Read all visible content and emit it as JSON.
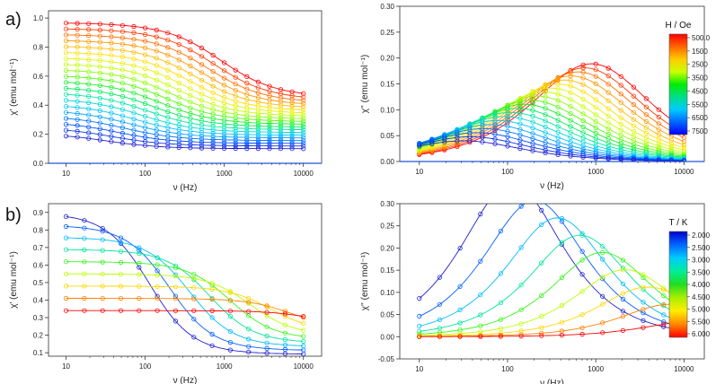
{
  "panel_labels": {
    "a": "a)",
    "b": "b)"
  },
  "chart_data": [
    {
      "id": "a_real",
      "type": "scatter",
      "xscale": "log",
      "xlim": [
        6,
        17000
      ],
      "ylim": [
        0,
        1.05
      ],
      "xticks": [
        10,
        100,
        1000,
        10000
      ],
      "xtick_labels": [
        "10",
        "100",
        "1000",
        "10000"
      ],
      "yticks": [
        0,
        0.2,
        0.4,
        0.6,
        0.8,
        1.0
      ],
      "ytick_labels": [
        "0.0",
        "0.2",
        "0.4",
        "0.6",
        "0.8",
        "1.0"
      ],
      "xlabel": "ν (Hz)",
      "ylabel": "χ' (emu mol⁻¹)",
      "legend_ref": "H / Oe",
      "generator": "real",
      "series_count": 20,
      "points_per_series": 22,
      "chi0_range": [
        0.97,
        0.21
      ],
      "chis_range": [
        0.45,
        0.1
      ],
      "tau_log10_range": [
        -3.75,
        -2.3
      ],
      "alpha": 0.2,
      "zero_line": true
    },
    {
      "id": "a_imag",
      "type": "scatter",
      "xscale": "log",
      "xlim": [
        6,
        17000
      ],
      "ylim": [
        0,
        0.3
      ],
      "xticks": [
        10,
        100,
        1000,
        10000
      ],
      "xtick_labels": [
        "10",
        "100",
        "1000",
        "10000"
      ],
      "yticks": [
        0,
        0.05,
        0.1,
        0.15,
        0.2,
        0.25,
        0.3
      ],
      "ytick_labels": [
        "0.00",
        "0.05",
        "0.10",
        "0.15",
        "0.20",
        "0.25",
        "0.30"
      ],
      "xlabel": "ν (Hz)",
      "ylabel": "χ'' (emu mol⁻¹)",
      "legend_ref": "H / Oe",
      "generator": "imag",
      "series_count": 20,
      "points_per_series": 22,
      "chi0_range": [
        0.97,
        0.21
      ],
      "chis_range": [
        0.45,
        0.1
      ],
      "tau_log10_range": [
        -3.75,
        -2.3
      ],
      "alpha": 0.2,
      "zero_line": true
    },
    {
      "id": "b_real",
      "type": "scatter",
      "xscale": "log",
      "xlim": [
        6,
        17000
      ],
      "ylim": [
        0.08,
        0.95
      ],
      "xticks": [
        10,
        100,
        1000,
        10000
      ],
      "xtick_labels": [
        "10",
        "100",
        "1000",
        "10000"
      ],
      "yticks": [
        0.1,
        0.2,
        0.3,
        0.4,
        0.5,
        0.6,
        0.7,
        0.8,
        0.9
      ],
      "ytick_labels": [
        "0.1",
        "0.2",
        "0.3",
        "0.4",
        "0.5",
        "0.6",
        "0.7",
        "0.8",
        "0.9"
      ],
      "xlabel": "ν (Hz)",
      "ylabel": "χ' (emu mol⁻¹)",
      "legend_ref": "T / K",
      "generator": "real",
      "series_count": 9,
      "points_per_series": 14,
      "chi0_range": [
        0.9,
        0.34
      ],
      "chis_range": [
        0.09,
        0.26
      ],
      "tau_log10_range": [
        -2.85,
        -4.9
      ],
      "alpha": 0.1,
      "zero_line": false
    },
    {
      "id": "b_imag",
      "type": "scatter",
      "xscale": "log",
      "xlim": [
        6,
        17000
      ],
      "ylim": [
        -0.05,
        0.3
      ],
      "xticks": [
        10,
        100,
        1000,
        10000
      ],
      "xtick_labels": [
        "10",
        "100",
        "1000",
        "10000"
      ],
      "yticks": [
        -0.05,
        0,
        0.05,
        0.1,
        0.15,
        0.2,
        0.25,
        0.3
      ],
      "ytick_labels": [
        "-0.05",
        "0.00",
        "0.05",
        "0.10",
        "0.15",
        "0.20",
        "0.25",
        "0.30"
      ],
      "xlabel": "ν (Hz)",
      "ylabel": "χ'' (emu mol⁻¹)",
      "legend_ref": "T / K",
      "generator": "imag",
      "series_count": 9,
      "points_per_series": 14,
      "chi0_range": [
        0.9,
        0.34
      ],
      "chis_range": [
        0.09,
        0.26
      ],
      "tau_log10_range": [
        -2.85,
        -4.9
      ],
      "alpha": 0.1,
      "zero_line": false
    }
  ],
  "legends": [
    {
      "title": "H / Oe",
      "labels": [
        "500.0",
        "1500",
        "2500",
        "3500",
        "4500",
        "5500",
        "6500",
        "7500"
      ],
      "colors_top_to_bottom": [
        "#ff0000",
        "#ff6600",
        "#ffcc00",
        "#ccff00",
        "#00ee00",
        "#00dd88",
        "#00ccff",
        "#0066ff",
        "#0000ff"
      ]
    },
    {
      "title": "T / K",
      "labels": [
        "2.000",
        "2.500",
        "3.000",
        "3.500",
        "4.000",
        "4.500",
        "5.000",
        "5.500",
        "6.000"
      ],
      "colors_top_to_bottom": [
        "#0000cc",
        "#0066ff",
        "#00ccff",
        "#00ee99",
        "#22dd22",
        "#aaee00",
        "#ffee00",
        "#ff8800",
        "#ff0000"
      ]
    }
  ],
  "series_colors_red_to_blue": [
    "#ff0000",
    "#ff6600",
    "#ffaa00",
    "#ffe600",
    "#c8ff00",
    "#6aff00",
    "#00ee33",
    "#00e6aa",
    "#00ccff",
    "#008cff",
    "#0044ff",
    "#2222cc"
  ]
}
